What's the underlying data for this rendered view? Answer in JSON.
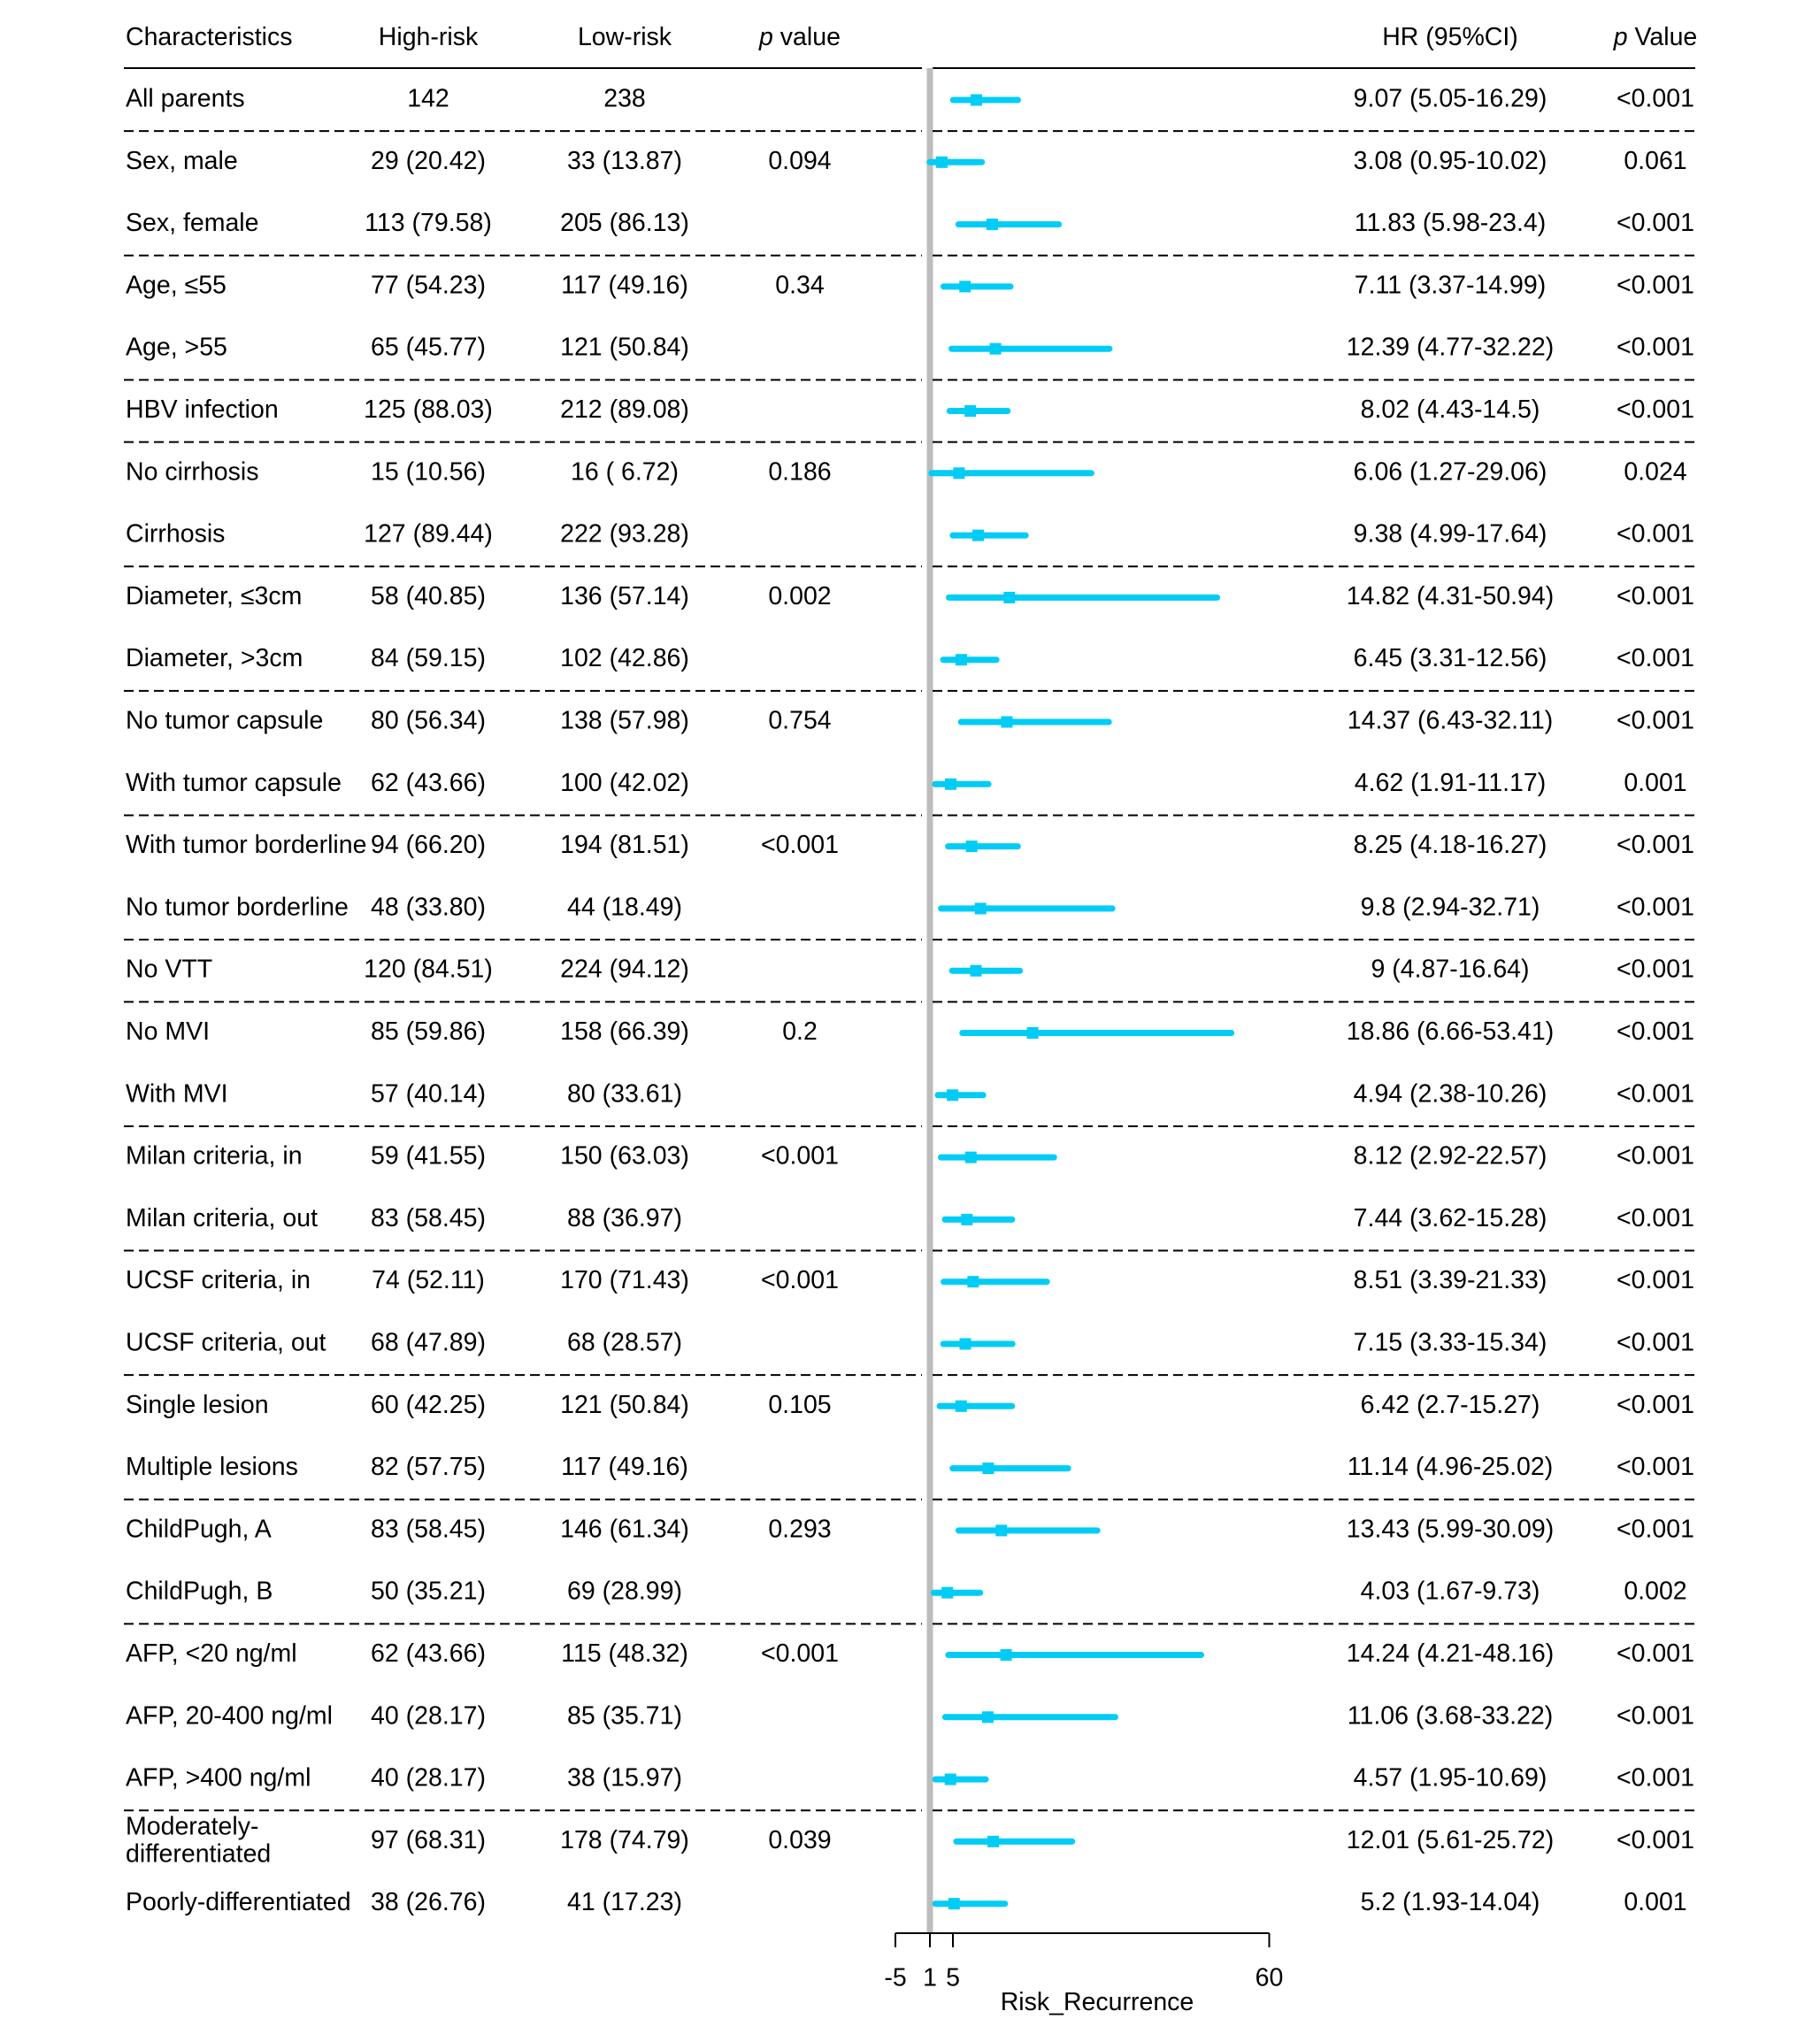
{
  "chart_data": {
    "type": "forest",
    "headers": {
      "characteristics": "Characteristics",
      "high_risk": "High-risk",
      "low_risk": "Low-risk",
      "p_value_italic": "p",
      "p_value_rest": " value",
      "hr": "HR (95%CI)",
      "p_value2_italic": "p",
      "p_value2_rest": " Value"
    },
    "rows": [
      {
        "label": [
          "All parents"
        ],
        "high": "142",
        "low": "238",
        "p": "",
        "hr_text": "9.07 (5.05-16.29)",
        "p2": "<0.001",
        "hr": 9.07,
        "lo": 5.05,
        "hi": 16.29,
        "sep": "solid"
      },
      {
        "label": [
          "Sex, male"
        ],
        "high": "29 (20.42)",
        "low": "33 (13.87)",
        "p": "0.094",
        "hr_text": "3.08 (0.95-10.02)",
        "p2": "0.061",
        "hr": 3.08,
        "lo": 0.95,
        "hi": 10.02,
        "sep": "dashed"
      },
      {
        "label": [
          "Sex, female"
        ],
        "high": "113 (79.58)",
        "low": "205 (86.13)",
        "p": "",
        "hr_text": "11.83 (5.98-23.4)",
        "p2": "<0.001",
        "hr": 11.83,
        "lo": 5.98,
        "hi": 23.4,
        "sep": "none"
      },
      {
        "label": [
          "Age, ≤55"
        ],
        "high": "77 (54.23)",
        "low": "117 (49.16)",
        "p": "0.34",
        "hr_text": "7.11 (3.37-14.99)",
        "p2": "<0.001",
        "hr": 7.11,
        "lo": 3.37,
        "hi": 14.99,
        "sep": "dashed"
      },
      {
        "label": [
          "Age, >55"
        ],
        "high": "65 (45.77)",
        "low": "121 (50.84)",
        "p": "",
        "hr_text": "12.39 (4.77-32.22)",
        "p2": "<0.001",
        "hr": 12.39,
        "lo": 4.77,
        "hi": 32.22,
        "sep": "none"
      },
      {
        "label": [
          "HBV infection"
        ],
        "high": "125 (88.03)",
        "low": "212 (89.08)",
        "p": "",
        "hr_text": "8.02 (4.43-14.5)",
        "p2": "<0.001",
        "hr": 8.02,
        "lo": 4.43,
        "hi": 14.5,
        "sep": "dashed"
      },
      {
        "label": [
          "No cirrhosis"
        ],
        "high": "15 (10.56)",
        "low": "16 ( 6.72)",
        "p": "0.186",
        "hr_text": "6.06 (1.27-29.06)",
        "p2": "0.024",
        "hr": 6.06,
        "lo": 1.27,
        "hi": 29.06,
        "sep": "dashed"
      },
      {
        "label": [
          "Cirrhosis"
        ],
        "high": "127 (89.44)",
        "low": "222 (93.28)",
        "p": "",
        "hr_text": "9.38 (4.99-17.64)",
        "p2": "<0.001",
        "hr": 9.38,
        "lo": 4.99,
        "hi": 17.64,
        "sep": "none"
      },
      {
        "label": [
          "Diameter, ≤3cm"
        ],
        "high": "58 (40.85)",
        "low": "136 (57.14)",
        "p": "0.002",
        "hr_text": "14.82 (4.31-50.94)",
        "p2": "<0.001",
        "hr": 14.82,
        "lo": 4.31,
        "hi": 50.94,
        "sep": "dashed"
      },
      {
        "label": [
          "Diameter, >3cm"
        ],
        "high": "84 (59.15)",
        "low": "102 (42.86)",
        "p": "",
        "hr_text": "6.45 (3.31-12.56)",
        "p2": "<0.001",
        "hr": 6.45,
        "lo": 3.31,
        "hi": 12.56,
        "sep": "none"
      },
      {
        "label": [
          "No tumor capsule"
        ],
        "high": "80 (56.34)",
        "low": "138 (57.98)",
        "p": "0.754",
        "hr_text": "14.37 (6.43-32.11)",
        "p2": "<0.001",
        "hr": 14.37,
        "lo": 6.43,
        "hi": 32.11,
        "sep": "dashed"
      },
      {
        "label": [
          "With tumor capsule"
        ],
        "high": "62 (43.66)",
        "low": "100 (42.02)",
        "p": "",
        "hr_text": "4.62 (1.91-11.17)",
        "p2": "0.001",
        "hr": 4.62,
        "lo": 1.91,
        "hi": 11.17,
        "sep": "none"
      },
      {
        "label": [
          "With tumor borderline"
        ],
        "high": "94 (66.20)",
        "low": "194 (81.51)",
        "p": "<0.001",
        "hr_text": "8.25 (4.18-16.27)",
        "p2": "<0.001",
        "hr": 8.25,
        "lo": 4.18,
        "hi": 16.27,
        "sep": "dashed"
      },
      {
        "label": [
          "No tumor borderline"
        ],
        "high": "48 (33.80)",
        "low": "44 (18.49)",
        "p": "",
        "hr_text": "9.8 (2.94-32.71)",
        "p2": "<0.001",
        "hr": 9.8,
        "lo": 2.94,
        "hi": 32.71,
        "sep": "none"
      },
      {
        "label": [
          "No VTT"
        ],
        "high": "120 (84.51)",
        "low": "224 (94.12)",
        "p": "",
        "hr_text": "9 (4.87-16.64)",
        "p2": "<0.001",
        "hr": 9,
        "lo": 4.87,
        "hi": 16.64,
        "sep": "dashed"
      },
      {
        "label": [
          "No MVI"
        ],
        "high": "85 (59.86)",
        "low": "158 (66.39)",
        "p": "0.2",
        "hr_text": "18.86 (6.66-53.41)",
        "p2": "<0.001",
        "hr": 18.86,
        "lo": 6.66,
        "hi": 53.41,
        "sep": "dashed"
      },
      {
        "label": [
          "With MVI"
        ],
        "high": "57 (40.14)",
        "low": "80 (33.61)",
        "p": "",
        "hr_text": "4.94 (2.38-10.26)",
        "p2": "<0.001",
        "hr": 4.94,
        "lo": 2.38,
        "hi": 10.26,
        "sep": "none"
      },
      {
        "label": [
          "Milan criteria, in"
        ],
        "high": "59 (41.55)",
        "low": "150 (63.03)",
        "p": "<0.001",
        "hr_text": "8.12 (2.92-22.57)",
        "p2": "<0.001",
        "hr": 8.12,
        "lo": 2.92,
        "hi": 22.57,
        "sep": "dashed"
      },
      {
        "label": [
          "Milan criteria, out"
        ],
        "high": "83 (58.45)",
        "low": "88 (36.97)",
        "p": "",
        "hr_text": "7.44 (3.62-15.28)",
        "p2": "<0.001",
        "hr": 7.44,
        "lo": 3.62,
        "hi": 15.28,
        "sep": "none"
      },
      {
        "label": [
          "UCSF criteria, in"
        ],
        "high": "74 (52.11)",
        "low": "170 (71.43)",
        "p": "<0.001",
        "hr_text": "8.51 (3.39-21.33)",
        "p2": "<0.001",
        "hr": 8.51,
        "lo": 3.39,
        "hi": 21.33,
        "sep": "dashed"
      },
      {
        "label": [
          "UCSF criteria, out"
        ],
        "high": "68 (47.89)",
        "low": "68 (28.57)",
        "p": "",
        "hr_text": "7.15 (3.33-15.34)",
        "p2": "<0.001",
        "hr": 7.15,
        "lo": 3.33,
        "hi": 15.34,
        "sep": "none"
      },
      {
        "label": [
          "Single lesion"
        ],
        "high": "60 (42.25)",
        "low": "121 (50.84)",
        "p": "0.105",
        "hr_text": "6.42 (2.7-15.27)",
        "p2": "<0.001",
        "hr": 6.42,
        "lo": 2.7,
        "hi": 15.27,
        "sep": "dashed"
      },
      {
        "label": [
          "Multiple lesions"
        ],
        "high": "82 (57.75)",
        "low": "117 (49.16)",
        "p": "",
        "hr_text": "11.14 (4.96-25.02)",
        "p2": "<0.001",
        "hr": 11.14,
        "lo": 4.96,
        "hi": 25.02,
        "sep": "none"
      },
      {
        "label": [
          "ChildPugh, A"
        ],
        "high": "83 (58.45)",
        "low": "146 (61.34)",
        "p": "0.293",
        "hr_text": "13.43 (5.99-30.09)",
        "p2": "<0.001",
        "hr": 13.43,
        "lo": 5.99,
        "hi": 30.09,
        "sep": "dashed"
      },
      {
        "label": [
          "ChildPugh, B"
        ],
        "high": "50 (35.21)",
        "low": "69 (28.99)",
        "p": "",
        "hr_text": "4.03 (1.67-9.73)",
        "p2": "0.002",
        "hr": 4.03,
        "lo": 1.67,
        "hi": 9.73,
        "sep": "none"
      },
      {
        "label": [
          "AFP, <20 ng/ml"
        ],
        "high": "62 (43.66)",
        "low": "115 (48.32)",
        "p": "<0.001",
        "hr_text": "14.24 (4.21-48.16)",
        "p2": "<0.001",
        "hr": 14.24,
        "lo": 4.21,
        "hi": 48.16,
        "sep": "dashed"
      },
      {
        "label": [
          "AFP, 20-400 ng/ml"
        ],
        "high": "40 (28.17)",
        "low": "85 (35.71)",
        "p": "",
        "hr_text": "11.06 (3.68-33.22)",
        "p2": "<0.001",
        "hr": 11.06,
        "lo": 3.68,
        "hi": 33.22,
        "sep": "none"
      },
      {
        "label": [
          "AFP, >400 ng/ml"
        ],
        "high": "40 (28.17)",
        "low": "38 (15.97)",
        "p": "",
        "hr_text": "4.57 (1.95-10.69)",
        "p2": "<0.001",
        "hr": 4.57,
        "lo": 1.95,
        "hi": 10.69,
        "sep": "none"
      },
      {
        "label": [
          "Moderately-",
          "differentiated"
        ],
        "high": "97 (68.31)",
        "low": "178 (74.79)",
        "p": "0.039",
        "hr_text": "12.01 (5.61-25.72)",
        "p2": "<0.001",
        "hr": 12.01,
        "lo": 5.61,
        "hi": 25.72,
        "sep": "dashed"
      },
      {
        "label": [
          "Poorly-differentiated"
        ],
        "high": "38 (26.76)",
        "low": "41 (17.23)",
        "p": "",
        "hr_text": "5.2 (1.93-14.04)",
        "p2": "0.001",
        "hr": 5.2,
        "lo": 1.93,
        "hi": 14.04,
        "sep": "none"
      }
    ],
    "x_axis": {
      "label": "Risk_Recurrence",
      "ticks": [
        -5,
        1,
        5,
        60
      ],
      "tick_labels": [
        "-5",
        "1",
        "5",
        "60"
      ],
      "range": [
        -5,
        60
      ],
      "reference_line": 1
    },
    "colors": {
      "ci_line": "#00CCF5",
      "point": "#00CCF5",
      "reference_line": "#BDBDBD",
      "text": "#000000",
      "rules": "#000000"
    }
  }
}
